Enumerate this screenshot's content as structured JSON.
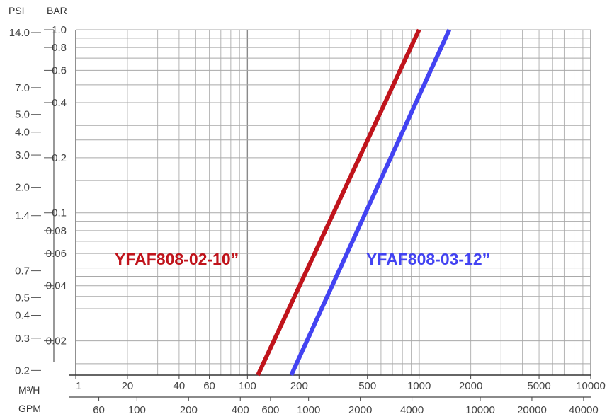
{
  "chart_data": {
    "type": "line",
    "scale": "log-log",
    "grid": true,
    "axes": {
      "left_outer": {
        "unit": "PSI",
        "ticks": [
          "14.0",
          "7.0",
          "5.0",
          "4.0",
          "3.0",
          "2.0",
          "1.4",
          "0.7",
          "0.5",
          "0.4",
          "0.3",
          "0.2"
        ]
      },
      "left_inner": {
        "unit": "BAR",
        "ticks": [
          "1.0",
          "0.8",
          "0.6",
          "0.4",
          "0.2",
          "0.1",
          "0.08",
          "0.06",
          "0.04",
          "0.02"
        ],
        "range": [
          0.013,
          1.0
        ]
      },
      "bottom_upper": {
        "unit": "M³/H",
        "ticks": [
          "1",
          "20",
          "40",
          "60",
          "100",
          "200",
          "500",
          "1000",
          "2000",
          "5000",
          "10000"
        ],
        "range": [
          10,
          10000
        ]
      },
      "bottom_lower": {
        "unit": "GPM",
        "ticks": [
          "60",
          "100",
          "200",
          "400",
          "600",
          "1000",
          "2000",
          "4000",
          "10000",
          "20000",
          "40000"
        ]
      }
    },
    "series": [
      {
        "name": "YFAF808-02-10”",
        "color": "#c0141c",
        "points": [
          {
            "x": 115,
            "y": 0.013
          },
          {
            "x": 1000,
            "y": 1.0
          }
        ]
      },
      {
        "name": "YFAF808-03-12”",
        "color": "#4343f2",
        "points": [
          {
            "x": 180,
            "y": 0.013
          },
          {
            "x": 1500,
            "y": 1.0
          }
        ]
      }
    ]
  }
}
